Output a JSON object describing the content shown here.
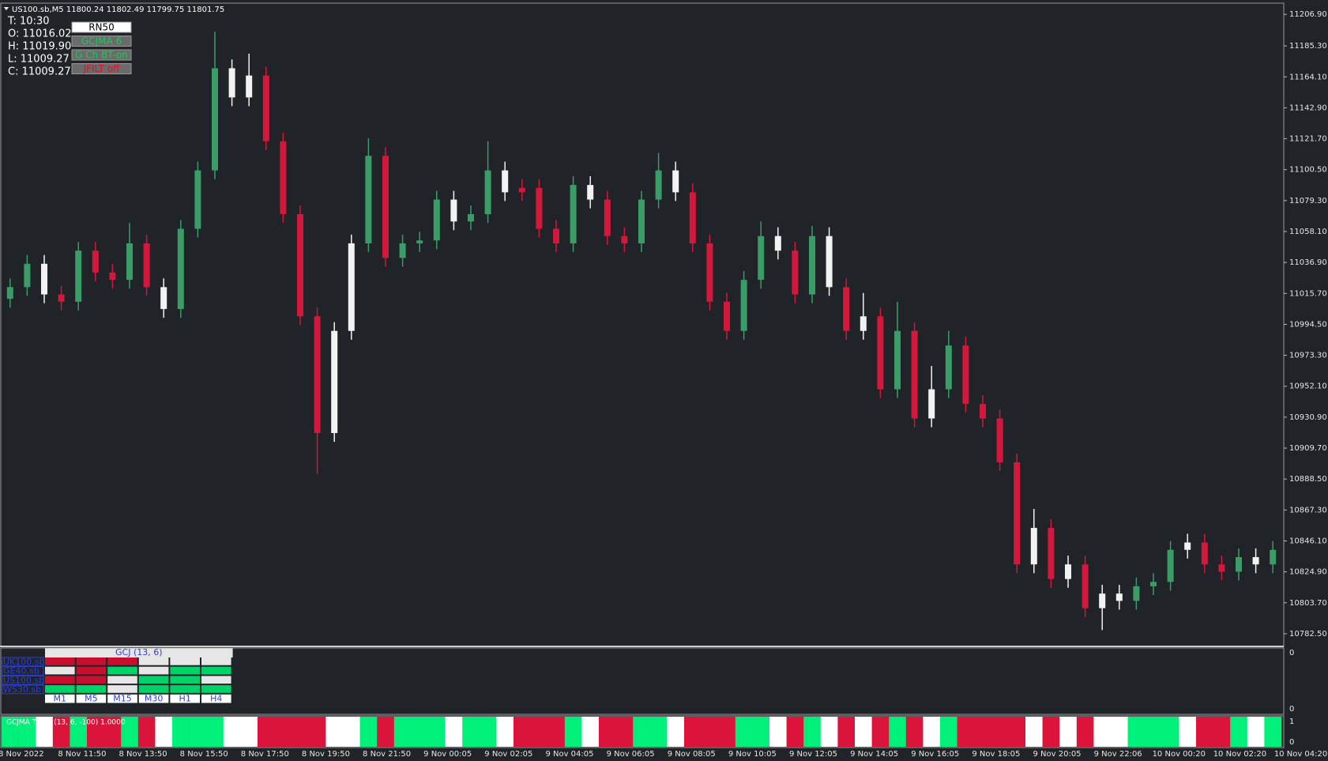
{
  "header": {
    "symbol_line": "US100.sb,M5  11800.24 11802.49 11799.75 11801.75"
  },
  "info": {
    "lines": [
      "T: 10:30",
      "O: 11016.02",
      "H: 11019.90",
      "L: 11009.27",
      "C: 11009.27"
    ],
    "buttons": [
      {
        "label": "RN50",
        "bg": "#ffffff",
        "color": "#000000"
      },
      {
        "label": "GCJMA 6",
        "bg": "#6b6b6b",
        "color": "#22c55e"
      },
      {
        "label": "G Ch BT-on",
        "bg": "#6b6b6b",
        "color": "#22c55e"
      },
      {
        "label": "JFILT off",
        "bg": "#6b6b6b",
        "color": "#e0102a"
      }
    ]
  },
  "chart_data": {
    "type": "candlestick",
    "open": [
      11012,
      11020,
      11036,
      11015,
      11010,
      11045,
      11030,
      11025,
      11050,
      11020,
      11005,
      11060,
      11100,
      11170,
      11150,
      11165,
      11120,
      11070,
      11000,
      10920,
      10990,
      11050,
      11110,
      11040,
      11050,
      11052,
      11080,
      11065,
      11070,
      11100,
      11085,
      11088,
      11060,
      11050,
      11090,
      11080,
      11055,
      11050,
      11080,
      11100,
      11085,
      11050,
      11010,
      10990,
      11025,
      11055,
      11045,
      11015,
      11055,
      11020,
      10990,
      11000,
      10950,
      10990,
      10930,
      10950,
      10980,
      10940,
      10930,
      10900,
      10830,
      10855,
      10820,
      10830,
      10800,
      10810,
      10805,
      10815,
      10818,
      10840,
      10845,
      10830,
      10825,
      10835,
      10830
    ],
    "high": [
      11026,
      11042,
      11042,
      11021,
      11051,
      11051,
      11036,
      11064,
      11056,
      11026,
      11066,
      11106,
      11195,
      11176,
      11180,
      11171,
      11126,
      11076,
      11006,
      10996,
      11056,
      11122,
      11116,
      11056,
      11058,
      11086,
      11086,
      11076,
      11120,
      11106,
      11094,
      11094,
      11066,
      11096,
      11096,
      11086,
      11061,
      11086,
      11112,
      11106,
      11091,
      11056,
      11016,
      11031,
      11065,
      11061,
      11051,
      11062,
      11061,
      11026,
      11016,
      11006,
      11010,
      10996,
      10966,
      10990,
      10986,
      10946,
      10936,
      10906,
      10868,
      10861,
      10836,
      10836,
      10816,
      10816,
      10821,
      10824,
      10846,
      10851,
      10851,
      10836,
      10841,
      10841,
      10846
    ],
    "low": [
      11006,
      11014,
      11009,
      11004,
      11004,
      11024,
      11019,
      11019,
      11014,
      10999,
      10999,
      11054,
      11094,
      11144,
      11144,
      11114,
      11064,
      10994,
      10892,
      10914,
      10984,
      11044,
      11034,
      11034,
      11044,
      11046,
      11059,
      11059,
      11064,
      11079,
      11079,
      11054,
      11044,
      11044,
      11074,
      11049,
      11044,
      11044,
      11074,
      11079,
      11044,
      11004,
      10984,
      10984,
      11019,
      11039,
      11009,
      11009,
      11014,
      10984,
      10984,
      10944,
      10944,
      10924,
      10924,
      10944,
      10934,
      10924,
      10894,
      10824,
      10824,
      10814,
      10814,
      10794,
      10785,
      10799,
      10799,
      10809,
      10812,
      10834,
      10824,
      10819,
      10819,
      10824,
      10824
    ],
    "close": [
      11020,
      11036,
      11015,
      11010,
      11045,
      11030,
      11025,
      11050,
      11020,
      11005,
      11060,
      11100,
      11170,
      11150,
      11165,
      11120,
      11070,
      11000,
      10920,
      10990,
      11050,
      11110,
      11040,
      11050,
      11052,
      11080,
      11065,
      11070,
      11100,
      11085,
      11088,
      11060,
      11050,
      11090,
      11080,
      11055,
      11050,
      11080,
      11100,
      11085,
      11050,
      11010,
      10990,
      11025,
      11055,
      11045,
      11015,
      11055,
      11020,
      10990,
      11000,
      10950,
      10990,
      10930,
      10950,
      10980,
      10940,
      10930,
      10900,
      10830,
      10855,
      10820,
      10830,
      10800,
      10810,
      10805,
      10815,
      10818,
      10840,
      10845,
      10830,
      10825,
      10835,
      10830,
      10840
    ],
    "trend": [
      "up",
      "up",
      "flat",
      "down",
      "up",
      "down",
      "down",
      "up",
      "down",
      "flat",
      "up",
      "up",
      "up",
      "flat",
      "flat",
      "down",
      "down",
      "down",
      "down",
      "flat",
      "flat",
      "up",
      "down",
      "up",
      "up",
      "up",
      "flat",
      "up",
      "up",
      "flat",
      "down",
      "down",
      "down",
      "up",
      "flat",
      "down",
      "down",
      "up",
      "up",
      "flat",
      "down",
      "down",
      "down",
      "up",
      "up",
      "flat",
      "down",
      "up",
      "flat",
      "down",
      "flat",
      "down",
      "up",
      "down",
      "flat",
      "up",
      "down",
      "down",
      "down",
      "down",
      "flat",
      "down",
      "flat",
      "down",
      "flat",
      "flat",
      "up",
      "up",
      "up",
      "flat",
      "down",
      "down",
      "up",
      "flat",
      "up"
    ],
    "candle_palette": {
      "up": "#3a9d68",
      "down": "#d4183d",
      "flat": "#f2f2f2"
    },
    "ylim": [
      10773.8,
      11214.6
    ],
    "yticks": [
      {
        "value": 11206.9,
        "label": "11206.90"
      },
      {
        "value": 11185.3,
        "label": "11185.30"
      },
      {
        "value": 11164.1,
        "label": "11164.10"
      },
      {
        "value": 11142.9,
        "label": "11142.90"
      },
      {
        "value": 11121.7,
        "label": "11121.70"
      },
      {
        "value": 11100.5,
        "label": "11100.50"
      },
      {
        "value": 11079.3,
        "label": "11079.30"
      },
      {
        "value": 11058.1,
        "label": "11058.10"
      },
      {
        "value": 11036.9,
        "label": "11036.90"
      },
      {
        "value": 11015.7,
        "label": "11015.70"
      },
      {
        "value": 10994.5,
        "label": "10994.50"
      },
      {
        "value": 10973.3,
        "label": "10973.30"
      },
      {
        "value": 10952.1,
        "label": "10952.10"
      },
      {
        "value": 10930.9,
        "label": "10930.90"
      },
      {
        "value": 10909.7,
        "label": "10909.70"
      },
      {
        "value": 10888.5,
        "label": "10888.50"
      },
      {
        "value": 10867.3,
        "label": "10867.30"
      },
      {
        "value": 10846.1,
        "label": "10846.10"
      },
      {
        "value": 10824.9,
        "label": "10824.90"
      },
      {
        "value": 10803.7,
        "label": "10803.70"
      },
      {
        "value": 10782.5,
        "label": "10782.50"
      }
    ],
    "x_labels": [
      "8 Nov 2022",
      "8 Nov 11:50",
      "8 Nov 13:50",
      "8 Nov 15:50",
      "8 Nov 17:50",
      "8 Nov 19:50",
      "8 Nov 21:50",
      "9 Nov 00:05",
      "9 Nov 02:05",
      "9 Nov 04:05",
      "9 Nov 06:05",
      "9 Nov 08:05",
      "9 Nov 10:05",
      "9 Nov 12:05",
      "9 Nov 14:05",
      "9 Nov 16:05",
      "9 Nov 18:05",
      "9 Nov 20:05",
      "9 Nov 22:06",
      "10 Nov 00:20",
      "10 Nov 02:20",
      "10 Nov 04:20"
    ]
  },
  "indicator_table": {
    "title": "GCJ (13, 6)",
    "symbols": [
      "UK100.sb",
      "GE40.sb",
      "US100.sb",
      "WS30.sb"
    ],
    "timeframes": [
      "M1",
      "M5",
      "M15",
      "M30",
      "H1",
      "H4"
    ],
    "cells": [
      [
        "#c8102e",
        "#c8102e",
        "#c8102e",
        "#e6e6e6",
        "#e6e6e6",
        "#e6e6e6"
      ],
      [
        "#e6e6e6",
        "#c8102e",
        "#00d26a",
        "#e6e6e6",
        "#00d26a",
        "#00d26a"
      ],
      [
        "#c8102e",
        "#c8102e",
        "#e6e6e6",
        "#00d26a",
        "#00d26a",
        "#e6e6e6"
      ],
      [
        "#00d26a",
        "#00d26a",
        "#e6e6e6",
        "#00d26a",
        "#00d26a",
        "#00d26a"
      ]
    ],
    "axis_labels": [
      "0",
      "0"
    ]
  },
  "trend_histogram": {
    "label": "GCJMA Trend (13, 6, -100) 1.0000",
    "values": [
      1,
      1,
      1,
      1,
      1,
      1,
      1,
      1,
      1,
      1,
      1,
      1,
      1,
      1,
      1,
      1,
      1,
      1,
      1,
      1,
      1,
      1,
      1,
      1,
      1,
      1,
      1,
      1,
      1,
      1,
      1,
      1,
      1,
      1,
      1,
      1,
      1,
      1,
      1,
      1,
      1,
      1,
      1,
      1,
      1,
      1,
      1,
      1,
      1,
      1,
      1,
      1,
      1,
      1,
      1,
      1,
      1,
      1,
      1,
      1,
      1,
      1,
      1,
      1,
      1,
      1,
      1,
      1,
      1,
      1,
      1,
      1,
      1,
      1,
      1
    ],
    "ylim": [
      0,
      1
    ],
    "yticks": [
      1,
      0
    ],
    "palette": {
      "up": "#00f07a",
      "down": "#dc143c",
      "flat": "#ffffff"
    }
  }
}
